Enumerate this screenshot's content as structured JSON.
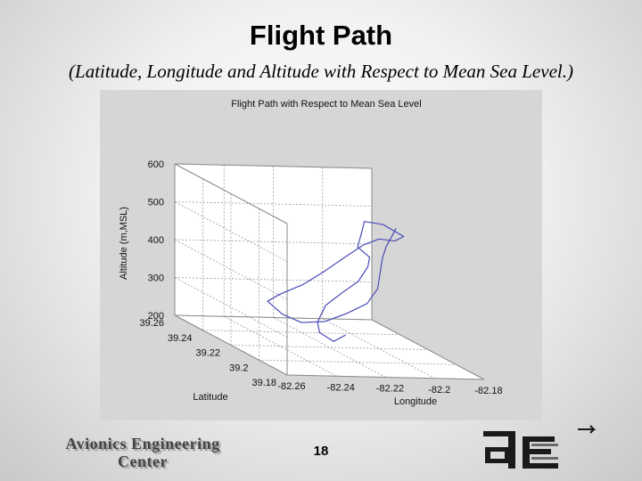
{
  "slide": {
    "title": "Flight Path",
    "subtitle": "(Latitude, Longitude and Altitude with Respect to Mean Sea Level.)",
    "page_number": "18"
  },
  "footer": {
    "logo_line1": "Avionics Engineering",
    "logo_line2": "Center",
    "ae_logo": "ae-logo"
  },
  "chart_data": {
    "type": "line3d",
    "title": "Flight Path with Respect to Mean Sea Level",
    "xlabel": "Longitude",
    "ylabel": "Latitude",
    "zlabel": "Altitude (m,MSL)",
    "xlim": [
      -82.26,
      -82.18
    ],
    "ylim": [
      39.18,
      39.26
    ],
    "zlim": [
      200,
      600
    ],
    "x_ticks": [
      "-82.26",
      "-82.24",
      "-82.22",
      "-82.2",
      "-82.18"
    ],
    "y_ticks": [
      "39.18",
      "39.2",
      "39.22",
      "39.24",
      "39.26"
    ],
    "z_ticks": [
      "200",
      "300",
      "400",
      "500",
      "600"
    ],
    "grid": true,
    "line_color": "#4a4ab8",
    "series": [
      {
        "points": [
          [
            -82.222,
            39.205,
            262
          ],
          [
            -82.228,
            39.203,
            248
          ],
          [
            -82.232,
            39.206,
            265
          ],
          [
            -82.23,
            39.211,
            283
          ],
          [
            -82.225,
            39.214,
            322
          ],
          [
            -82.22,
            39.211,
            362
          ],
          [
            -82.214,
            39.21,
            395
          ],
          [
            -82.209,
            39.212,
            430
          ],
          [
            -82.206,
            39.216,
            448
          ],
          [
            -82.208,
            39.221,
            465
          ],
          [
            -82.204,
            39.225,
            498
          ],
          [
            -82.199,
            39.232,
            512
          ],
          [
            -82.192,
            39.231,
            507
          ],
          [
            -82.187,
            39.225,
            488
          ],
          [
            -82.193,
            39.221,
            483
          ],
          [
            -82.201,
            39.218,
            493
          ],
          [
            -82.208,
            39.217,
            478
          ],
          [
            -82.214,
            39.22,
            438
          ],
          [
            -82.22,
            39.224,
            392
          ],
          [
            -82.226,
            39.228,
            350
          ],
          [
            -82.233,
            39.233,
            312
          ],
          [
            -82.236,
            39.236,
            288
          ],
          [
            -82.234,
            39.229,
            268
          ],
          [
            -82.232,
            39.219,
            266
          ],
          [
            -82.227,
            39.211,
            285
          ],
          [
            -82.221,
            39.206,
            317
          ],
          [
            -82.215,
            39.202,
            352
          ],
          [
            -82.209,
            39.205,
            386
          ],
          [
            -82.204,
            39.212,
            415
          ],
          [
            -82.199,
            39.219,
            443
          ],
          [
            -82.194,
            39.225,
            462
          ],
          [
            -82.189,
            39.23,
            478
          ],
          [
            -82.185,
            39.234,
            492
          ]
        ]
      }
    ]
  }
}
